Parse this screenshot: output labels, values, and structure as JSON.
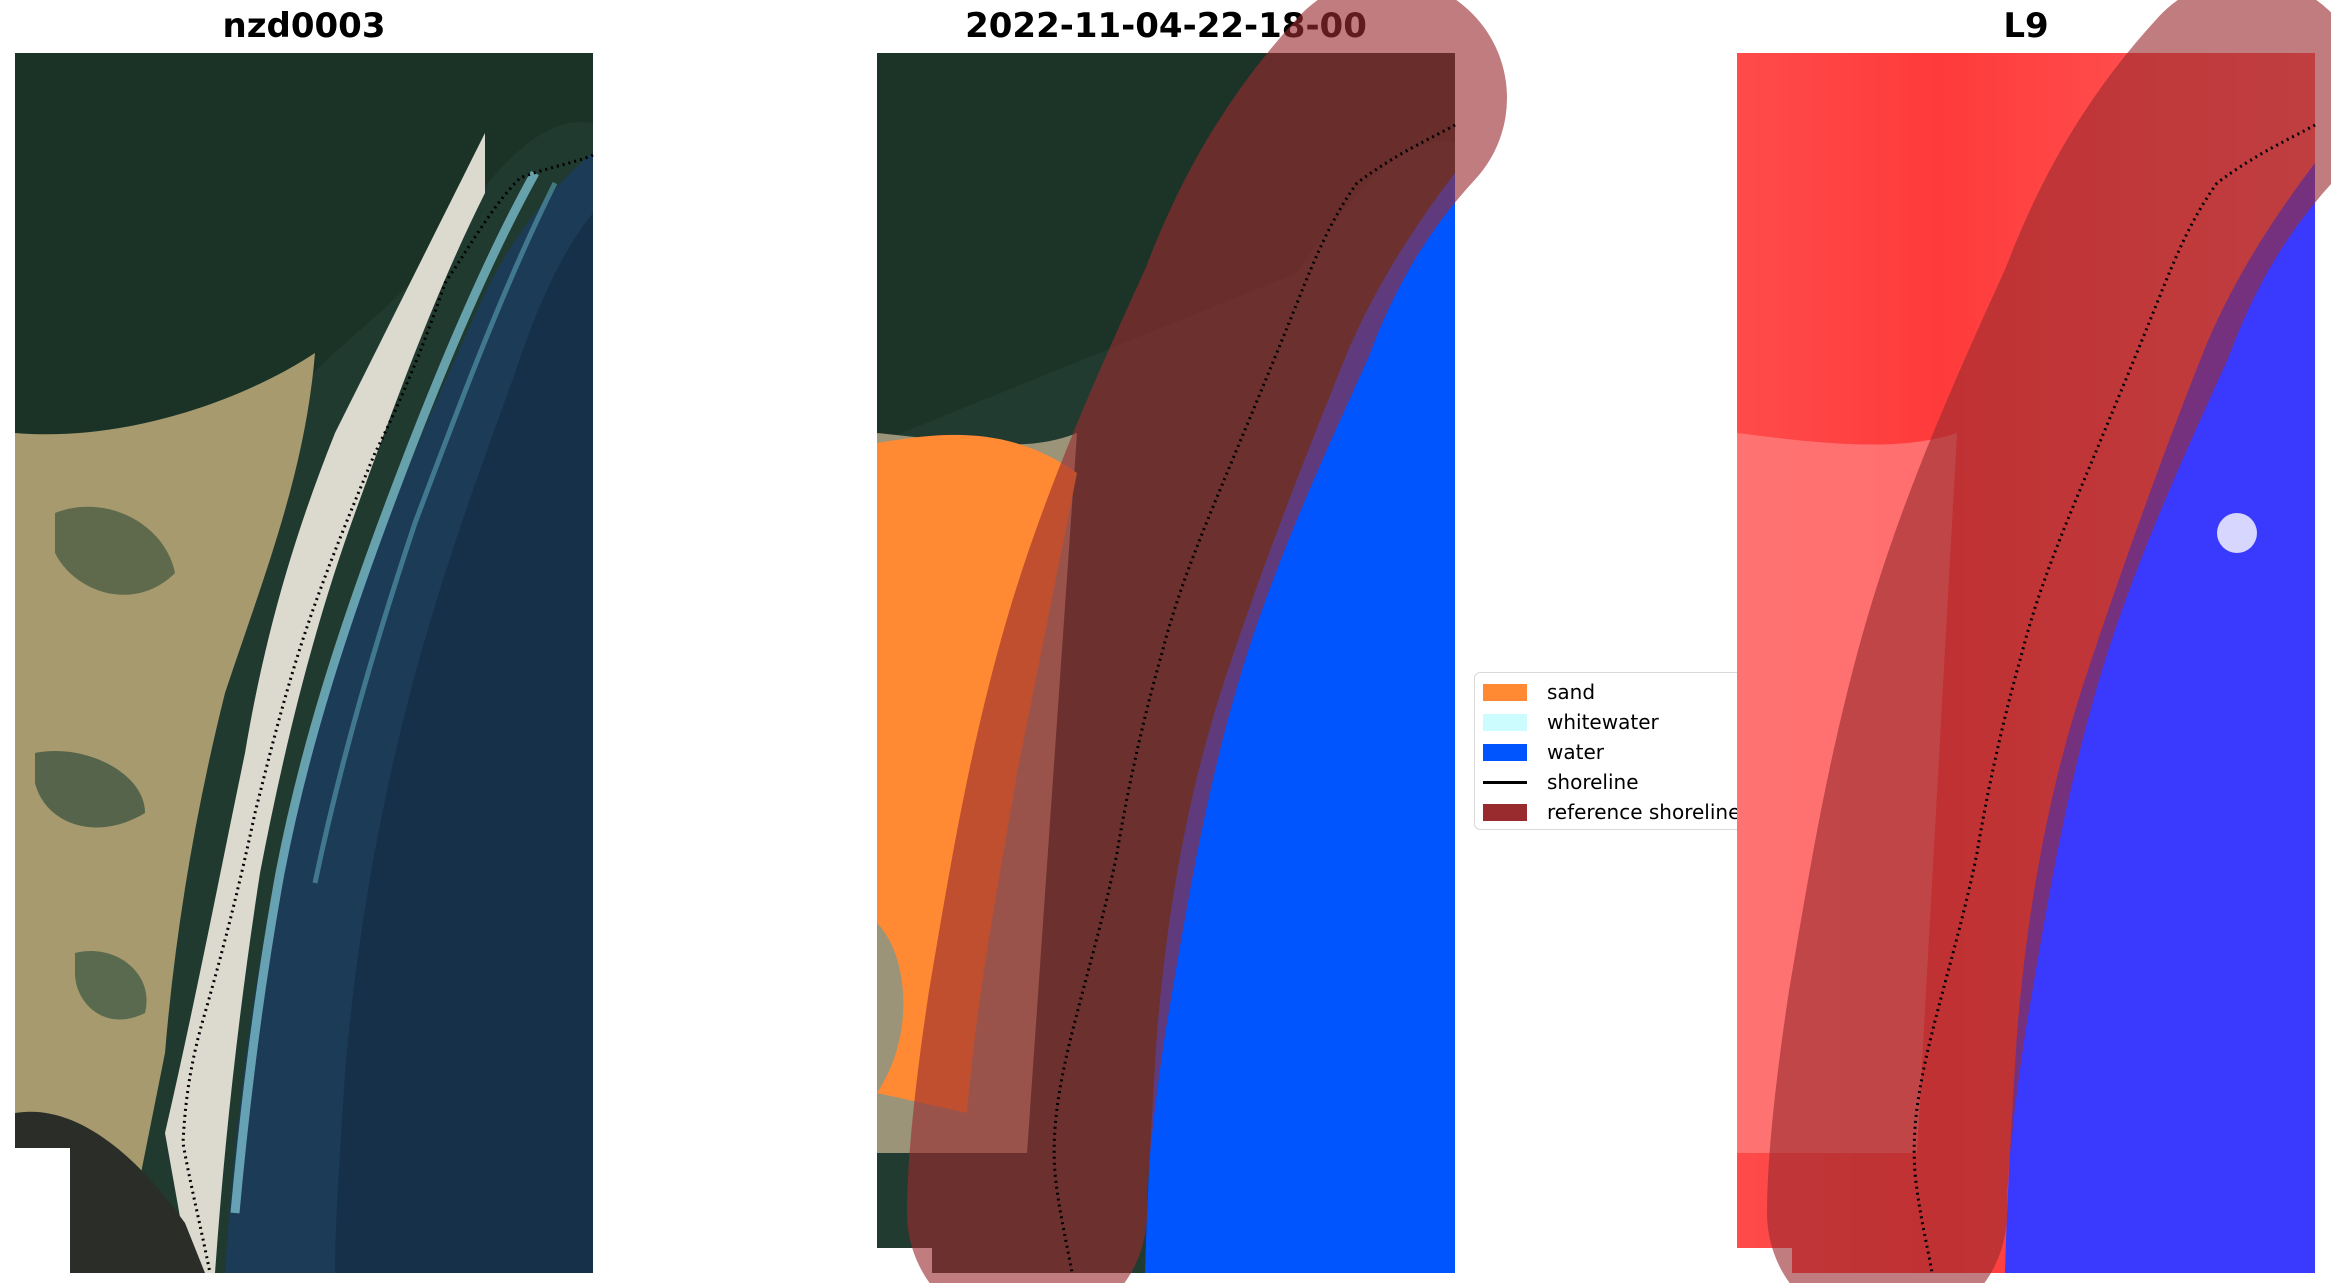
{
  "panels": [
    {
      "title": "nzd0003"
    },
    {
      "title": "2022-11-04-22-18-00"
    },
    {
      "title": "L9"
    }
  ],
  "legend": {
    "items": [
      {
        "label": "sand",
        "color": "#ff8a33",
        "kind": "patch"
      },
      {
        "label": "whitewater",
        "color": "#ccfcfe",
        "kind": "patch"
      },
      {
        "label": "water",
        "color": "#0055ff",
        "kind": "patch"
      },
      {
        "label": "shoreline",
        "color": "#000000",
        "kind": "line"
      },
      {
        "label": "reference shoreline",
        "color": "#992b2f",
        "kind": "patch"
      }
    ]
  },
  "colors": {
    "vegetation": "#1f3a2e",
    "sand": "#ff8a33",
    "water": "#0055ff",
    "ocean_rgb": "#1d3a55",
    "reference_buffer": "#992b2f",
    "index_positive": "#ff2a2a",
    "index_negative": "#3838ff"
  }
}
